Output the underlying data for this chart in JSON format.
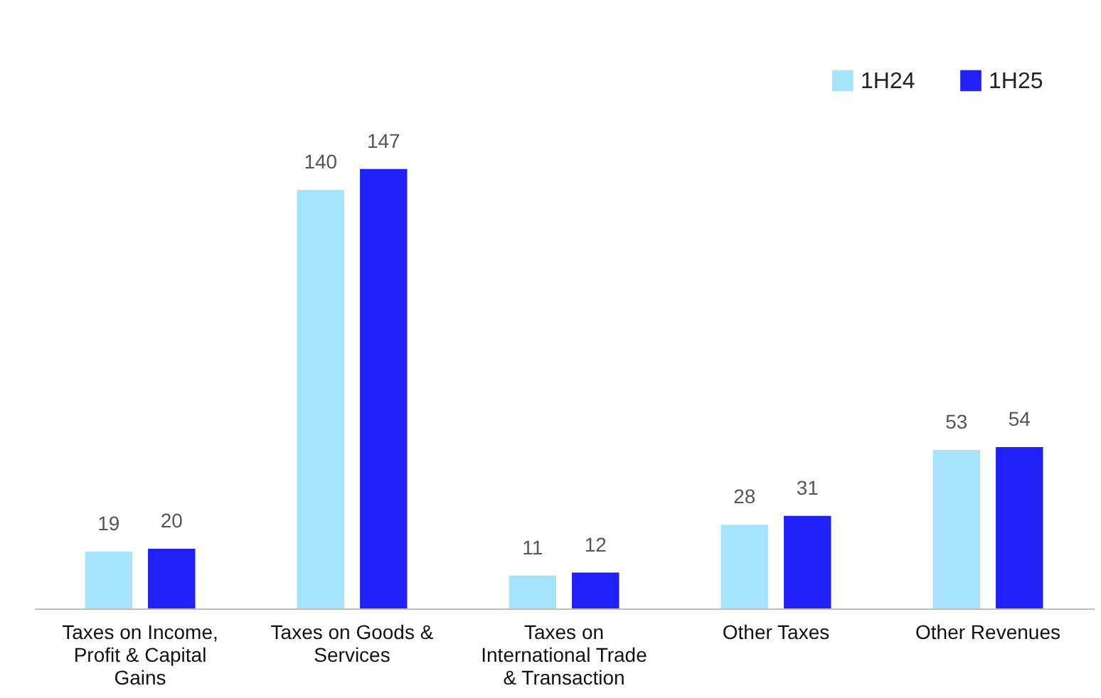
{
  "chart_data": {
    "type": "bar",
    "categories": [
      "Taxes on Income, Profit & Capital Gains",
      "Taxes on Goods & Services",
      "Taxes on International Trade & Transaction",
      "Other Taxes",
      "Other Revenues"
    ],
    "series": [
      {
        "name": "1H24",
        "color": "#a6e3fc",
        "values": [
          19,
          140,
          11,
          28,
          53
        ]
      },
      {
        "name": "1H25",
        "color": "#2121f5",
        "values": [
          20,
          147,
          12,
          31,
          54
        ]
      }
    ],
    "data_labels": true,
    "legend": "top right",
    "grid": false
  }
}
